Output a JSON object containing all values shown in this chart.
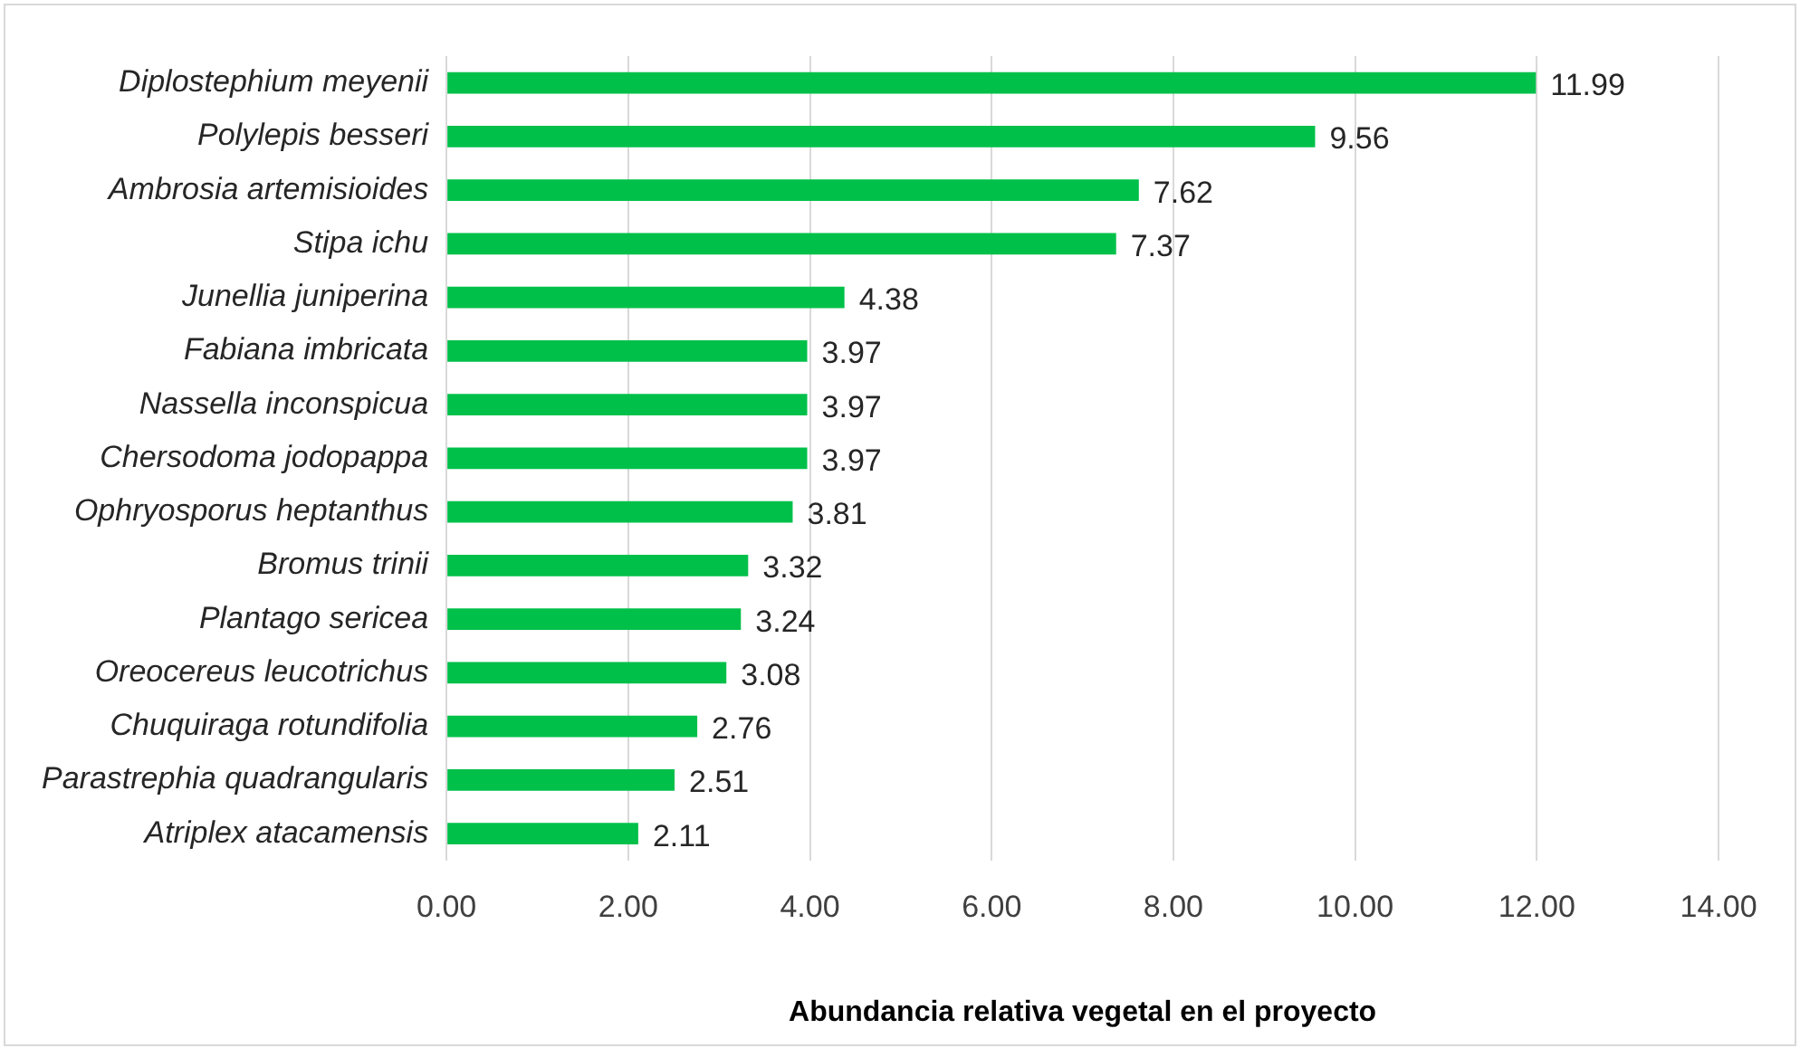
{
  "chart_data": {
    "type": "bar",
    "orientation": "horizontal",
    "xlabel": "Abundancia relativa vegetal en el proyecto",
    "categories": [
      "Diplostephium meyenii",
      "Polylepis besseri",
      "Ambrosia artemisioides",
      "Stipa ichu",
      "Junellia juniperina",
      "Fabiana imbricata",
      "Nassella inconspicua",
      "Chersodoma jodopappa",
      "Ophryosporus heptanthus",
      "Bromus trinii",
      "Plantago sericea",
      "Oreocereus leucotrichus",
      "Chuquiraga rotundifolia",
      "Parastrephia quadrangularis",
      "Atriplex atacamensis"
    ],
    "values": [
      11.99,
      9.56,
      7.62,
      7.37,
      4.38,
      3.97,
      3.97,
      3.97,
      3.81,
      3.32,
      3.24,
      3.08,
      2.76,
      2.51,
      2.11
    ],
    "color": "#00c04a",
    "xlim": [
      0,
      14
    ],
    "xticks": [
      {
        "value": 0,
        "label": "0.00"
      },
      {
        "value": 2,
        "label": "2.00"
      },
      {
        "value": 4,
        "label": "4.00"
      },
      {
        "value": 6,
        "label": "6.00"
      },
      {
        "value": 8,
        "label": "8.00"
      },
      {
        "value": 10,
        "label": "10.00"
      },
      {
        "value": 12,
        "label": "12.00"
      },
      {
        "value": 14,
        "label": "14.00"
      }
    ],
    "grid": "x",
    "data_labels": true,
    "legend": false
  }
}
